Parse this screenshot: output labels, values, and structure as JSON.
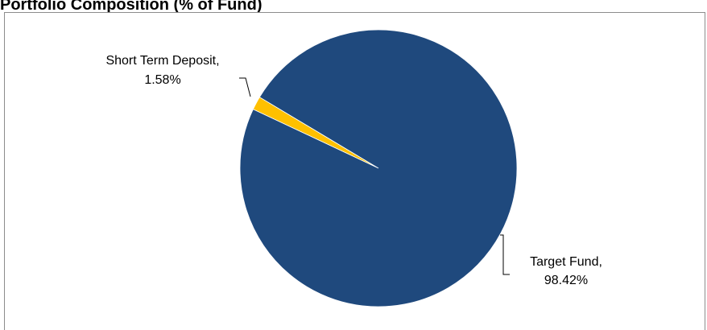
{
  "chart_data": {
    "type": "pie",
    "title": "Portfolio Composition (% of Fund)",
    "slices": [
      {
        "label": "Short Term Deposit",
        "value": 1.58,
        "display": "1.58%",
        "color": "#FFC000"
      },
      {
        "label": "Target Fund",
        "value": 98.42,
        "display": "98.42%",
        "color": "#1F497D"
      }
    ],
    "legend": "none",
    "data_labels": "outside with leader lines"
  }
}
